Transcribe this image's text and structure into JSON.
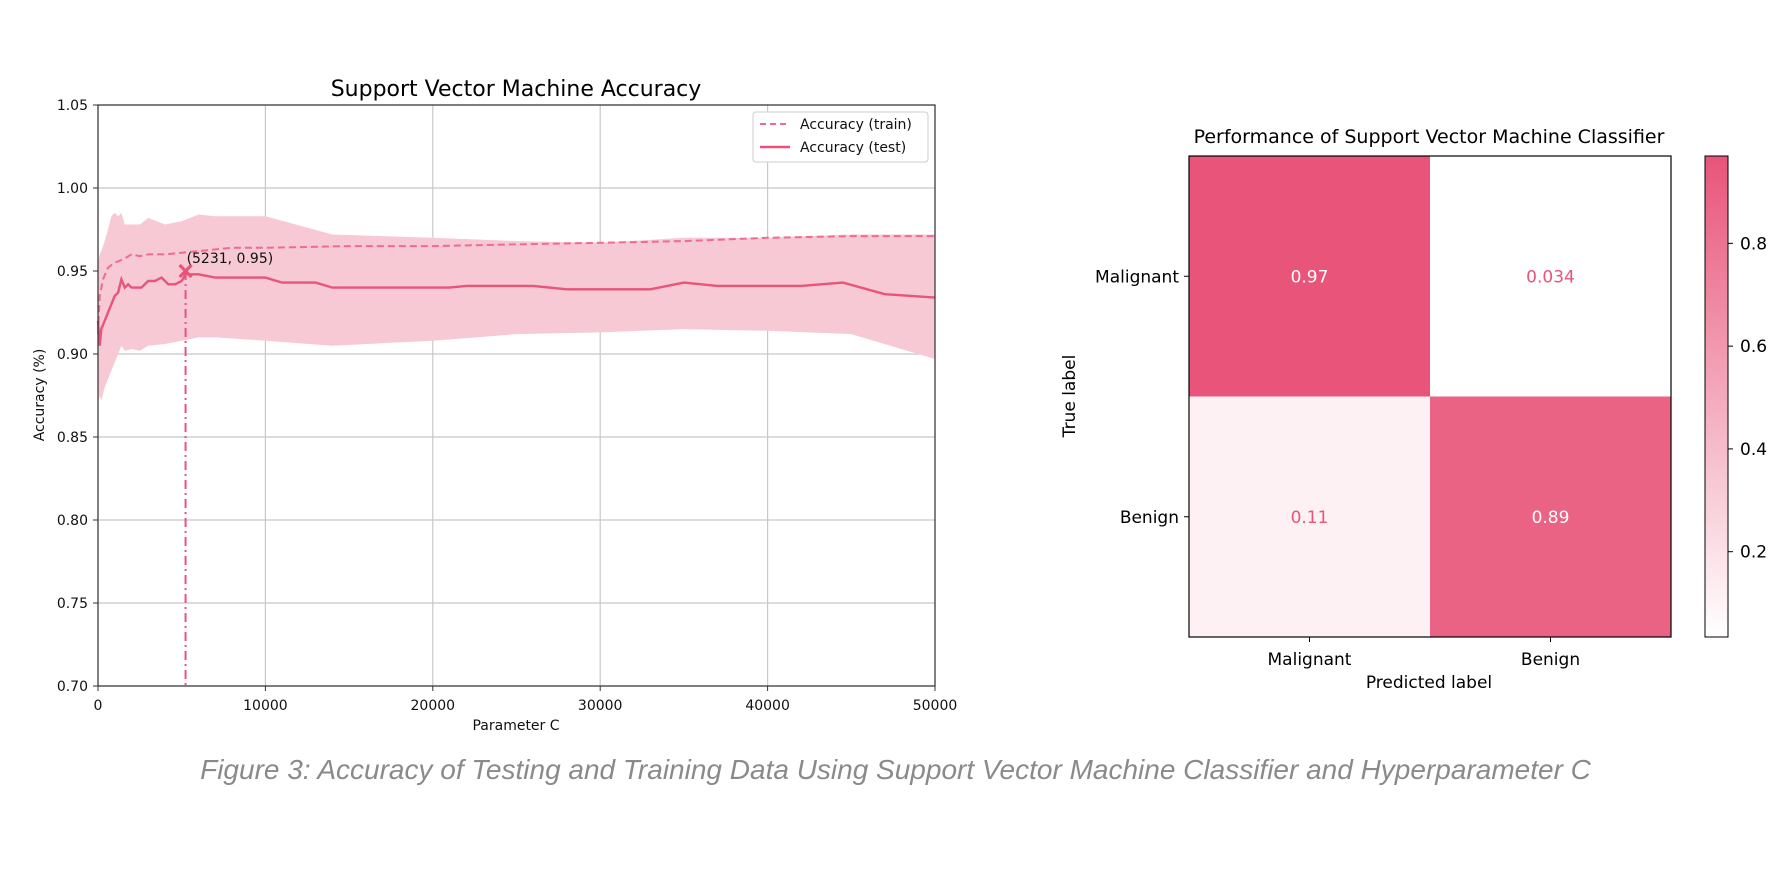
{
  "caption": "Figure 3: Accuracy of Testing and Training Data Using Support Vector Machine Classifier and Hyperparameter C",
  "colors": {
    "accent": "#e8547a",
    "band": "#f6c9d5",
    "grid": "#c8c8c8",
    "caption": "#8a8a8a"
  },
  "chart_data": [
    {
      "type": "line",
      "title": "Support Vector Machine Accuracy",
      "xlabel": "Parameter C",
      "ylabel": "Accuracy (%)",
      "xlim": [
        0,
        50000
      ],
      "ylim": [
        0.7,
        1.05
      ],
      "grid": true,
      "legend": "top-right",
      "xticks": [
        0,
        10000,
        20000,
        30000,
        40000,
        50000
      ],
      "xtick_labels": [
        "0",
        "10000",
        "20000",
        "30000",
        "40000",
        "50000"
      ],
      "yticks": [
        0.7,
        0.75,
        0.8,
        0.85,
        0.9,
        0.95,
        1.0,
        1.05
      ],
      "ytick_labels": [
        "0.70",
        "0.75",
        "0.80",
        "0.85",
        "0.90",
        "0.95",
        "1.00",
        "1.05"
      ],
      "series": [
        {
          "name": "Accuracy (train)",
          "style": "dashed",
          "color": "#f06b91",
          "x": [
            1,
            100,
            300,
            600,
            1000,
            1500,
            2000,
            2500,
            3000,
            4000,
            5000,
            6000,
            7000,
            8000,
            10000,
            15000,
            20000,
            25000,
            30000,
            35000,
            40000,
            45000,
            50000
          ],
          "y": [
            0.912,
            0.935,
            0.945,
            0.952,
            0.955,
            0.957,
            0.96,
            0.959,
            0.96,
            0.96,
            0.961,
            0.962,
            0.963,
            0.964,
            0.964,
            0.965,
            0.965,
            0.966,
            0.967,
            0.968,
            0.97,
            0.971,
            0.971
          ]
        },
        {
          "name": "Accuracy (test)",
          "style": "solid",
          "color": "#e8547a",
          "x": [
            1,
            100,
            200,
            400,
            600,
            800,
            1000,
            1200,
            1400,
            1600,
            1800,
            2000,
            2200,
            2600,
            3000,
            3400,
            3800,
            4200,
            4600,
            5000,
            5231,
            6000,
            7000,
            8000,
            10000,
            11000,
            13000,
            14000,
            18000,
            21000,
            22000,
            26000,
            28000,
            30000,
            33000,
            35000,
            37000,
            42000,
            44500,
            47000,
            50000
          ],
          "y": [
            0.92,
            0.905,
            0.915,
            0.92,
            0.925,
            0.93,
            0.935,
            0.937,
            0.945,
            0.94,
            0.942,
            0.94,
            0.94,
            0.94,
            0.944,
            0.944,
            0.946,
            0.942,
            0.942,
            0.944,
            0.948,
            0.948,
            0.946,
            0.946,
            0.946,
            0.943,
            0.943,
            0.94,
            0.94,
            0.94,
            0.941,
            0.941,
            0.939,
            0.939,
            0.939,
            0.943,
            0.941,
            0.941,
            0.943,
            0.936,
            0.934
          ]
        }
      ],
      "band": {
        "x": [
          1,
          100,
          200,
          400,
          600,
          800,
          1000,
          1200,
          1400,
          1600,
          2000,
          2500,
          3000,
          4000,
          5000,
          6000,
          7000,
          10000,
          14000,
          20000,
          25000,
          30000,
          35000,
          40000,
          45000,
          50000
        ],
        "upper": [
          0.955,
          0.96,
          0.962,
          0.968,
          0.975,
          0.983,
          0.985,
          0.983,
          0.985,
          0.978,
          0.978,
          0.978,
          0.982,
          0.978,
          0.98,
          0.984,
          0.983,
          0.983,
          0.972,
          0.97,
          0.968,
          0.967,
          0.97,
          0.97,
          0.972,
          0.972
        ],
        "lower": [
          0.87,
          0.875,
          0.872,
          0.88,
          0.885,
          0.89,
          0.895,
          0.9,
          0.905,
          0.902,
          0.903,
          0.902,
          0.905,
          0.906,
          0.908,
          0.91,
          0.91,
          0.908,
          0.905,
          0.908,
          0.912,
          0.913,
          0.915,
          0.914,
          0.912,
          0.897
        ]
      },
      "marker": {
        "x": 5231,
        "y": 0.95,
        "label": "(5231, 0.95)"
      }
    },
    {
      "type": "heatmap",
      "title": "Performance of Support Vector Machine Classifier",
      "xlabel": "Predicted label",
      "ylabel": "True label",
      "x_categories": [
        "Malignant",
        "Benign"
      ],
      "y_categories": [
        "Malignant",
        "Benign"
      ],
      "values": [
        [
          0.97,
          0.034
        ],
        [
          0.11,
          0.89
        ]
      ],
      "value_labels": [
        [
          "0.97",
          "0.034"
        ],
        [
          "0.11",
          "0.89"
        ]
      ],
      "colorbar": {
        "min": 0.034,
        "max": 0.97,
        "ticks": [
          0.2,
          0.4,
          0.6,
          0.8
        ],
        "tick_labels": [
          "0.2",
          "0.4",
          "0.6",
          "0.8"
        ]
      }
    }
  ]
}
